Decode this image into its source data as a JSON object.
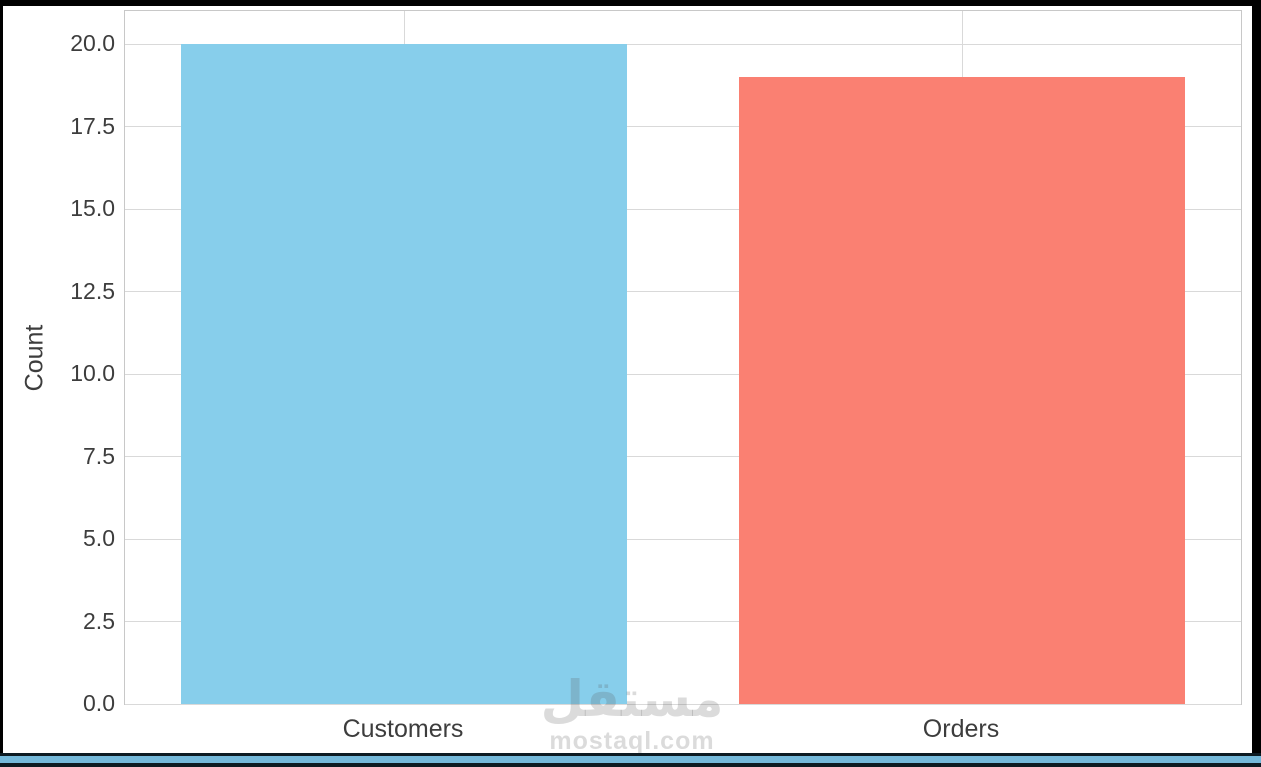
{
  "chart_data": {
    "type": "bar",
    "title": "",
    "categories": [
      "Customers",
      "Orders"
    ],
    "values": [
      20,
      19
    ],
    "xlabel": "",
    "ylabel": "Count",
    "ylim": [
      0,
      21
    ],
    "yticks": [
      0,
      2.5,
      5,
      7.5,
      10,
      12.5,
      15,
      17.5,
      20
    ],
    "ytick_labels": [
      "0.0",
      "2.5",
      "5.0",
      "7.5",
      "10.0",
      "12.5",
      "15.0",
      "17.5",
      "20.0"
    ],
    "bar_colors": [
      "#87CEEB",
      "#FA8072"
    ],
    "bar_width_fraction": 0.8,
    "grid": true,
    "legend": false,
    "grid_color": "#d9d9d9",
    "spine_color": "#c8c8c8",
    "tick_label_color": "#3d3d3d",
    "plot_background": "#ffffff"
  },
  "watermark": {
    "logo_text": "مستقل",
    "site_text": "mostaql.com"
  },
  "frame": {
    "border_color": "#000000",
    "figure_background": "#ffffff",
    "bottom_strip_color": "#74b9da"
  }
}
